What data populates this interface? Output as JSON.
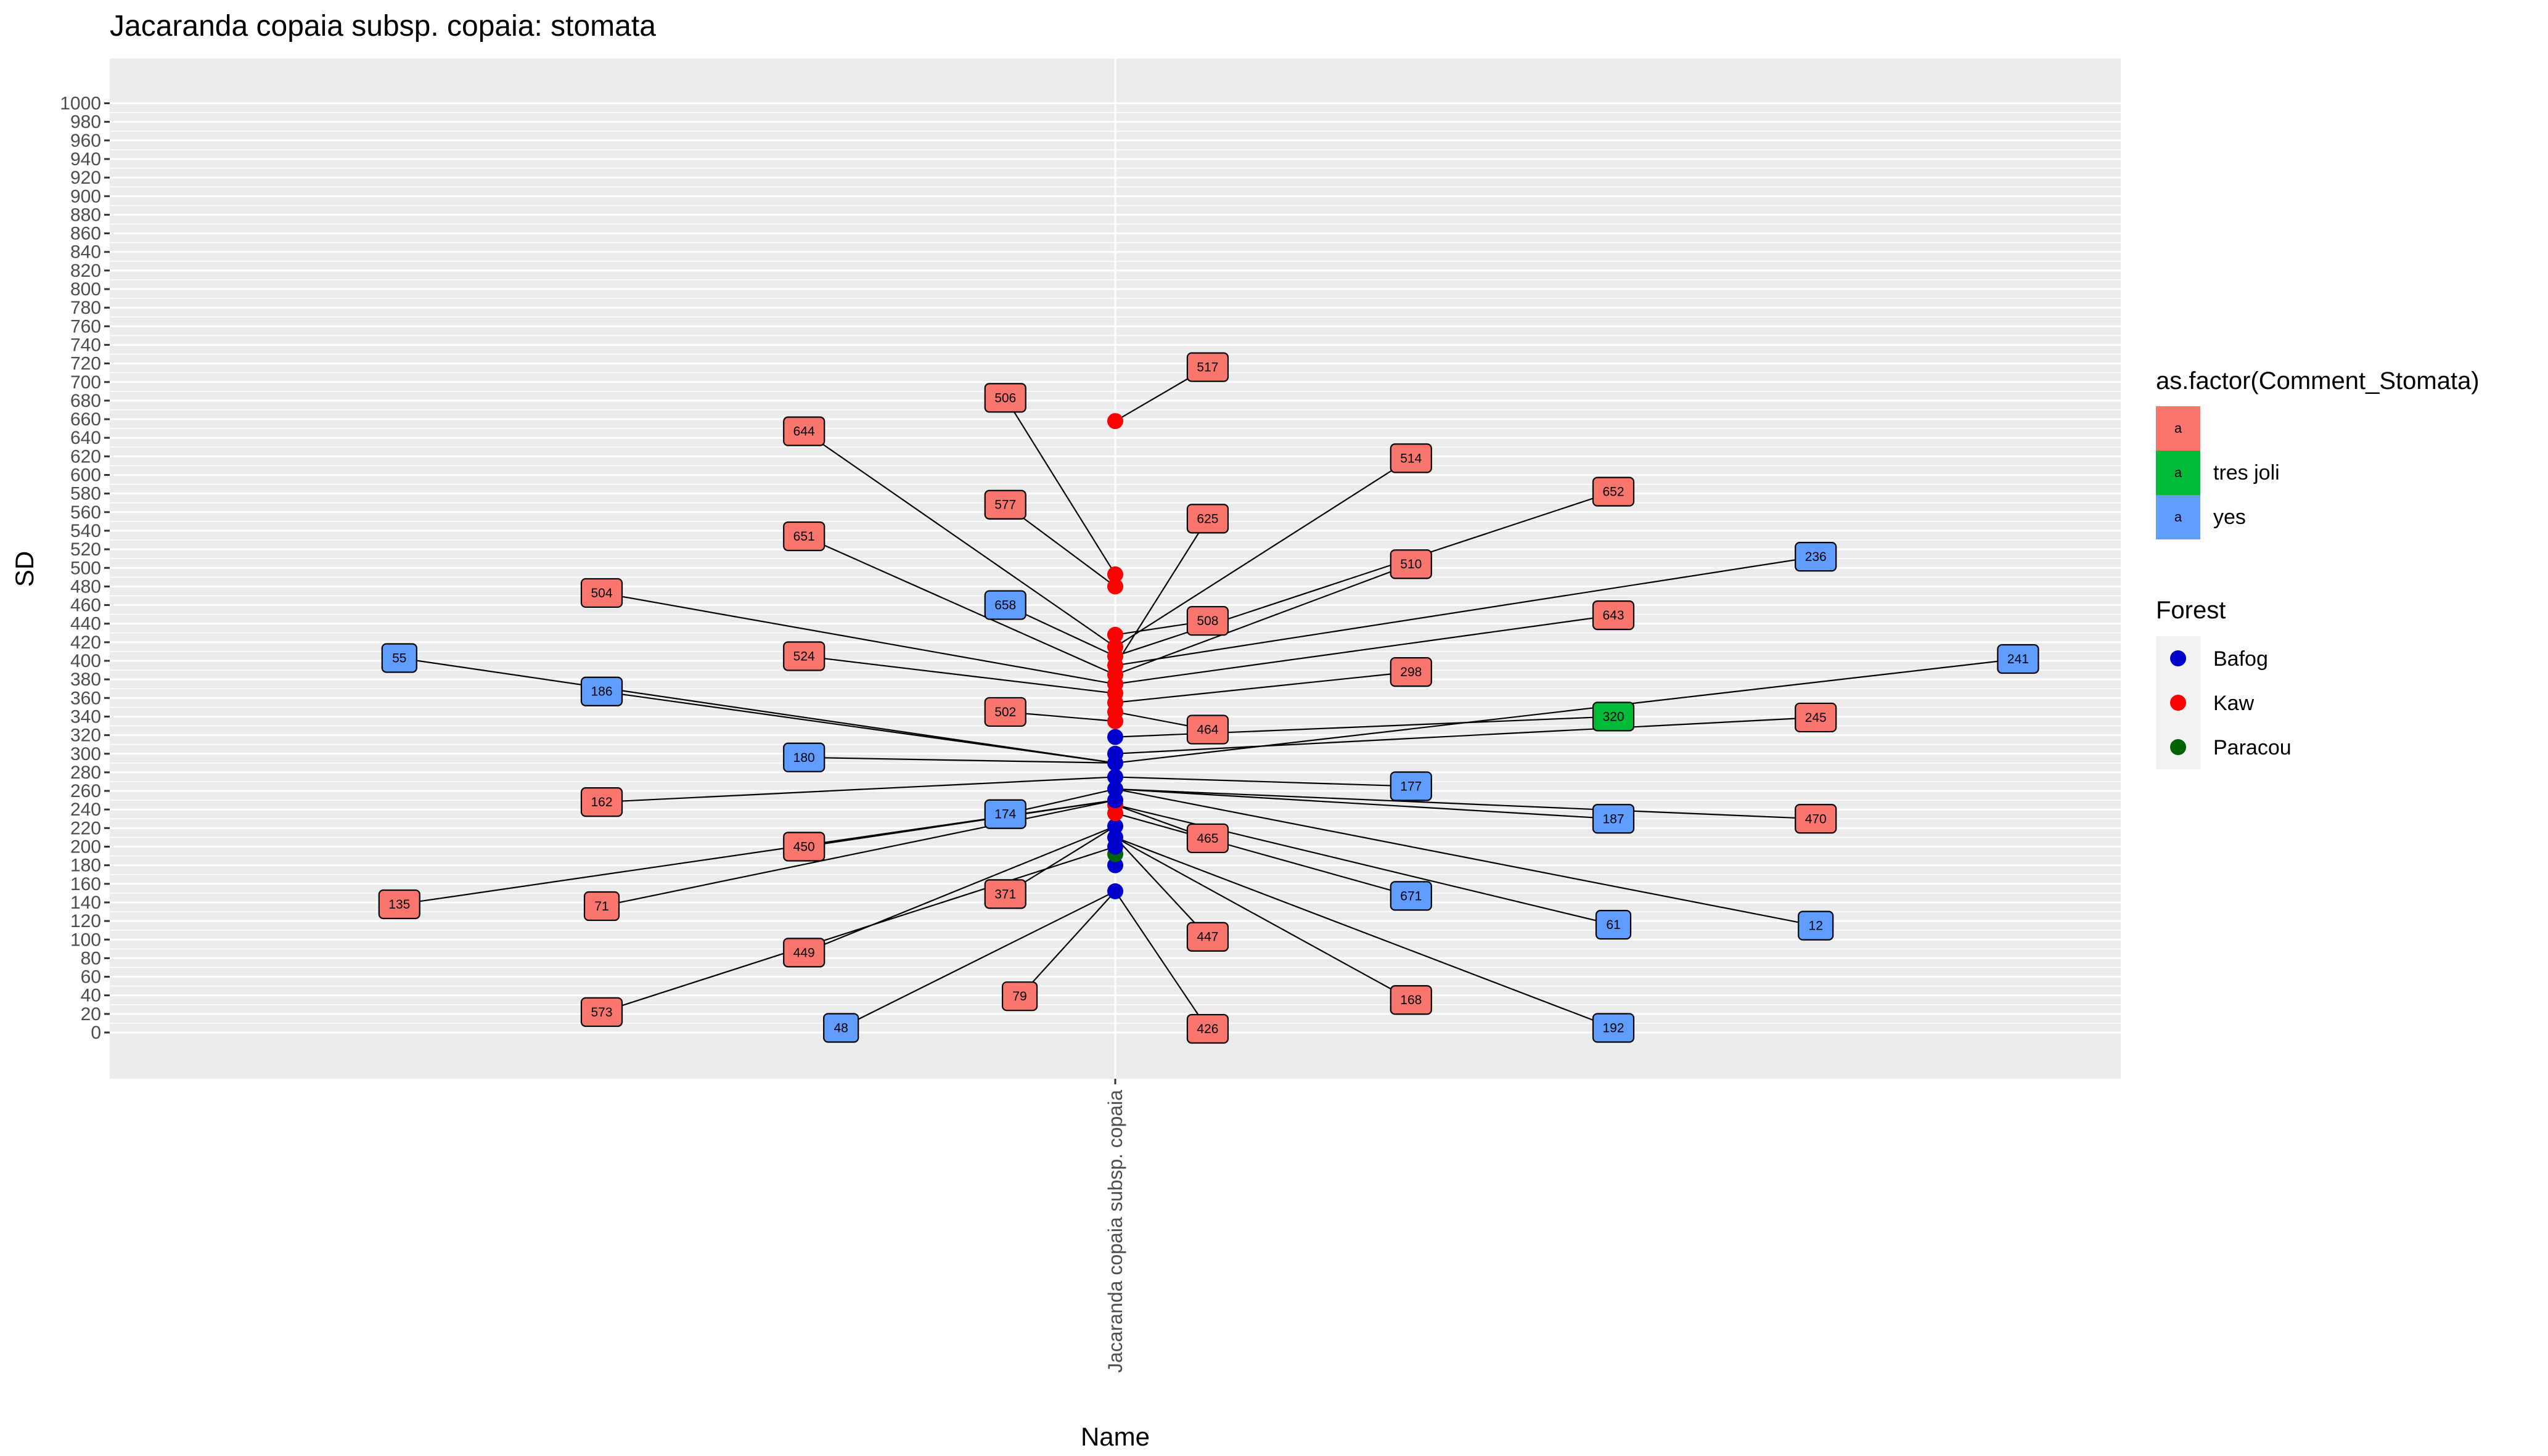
{
  "colors": {
    "panel_bg": "#EBEBEB",
    "grid": "#FFFFFF",
    "fill_blank": "#F8766D",
    "fill_tres_joli": "#00BA38",
    "fill_yes": "#619CFF",
    "Bafog": "#0000CD",
    "Kaw": "#FF0000",
    "Paracou": "#006400"
  },
  "chart_data": {
    "type": "scatter",
    "title": "Jacaranda copaia subsp. copaia: stomata",
    "xlabel": "Name",
    "ylabel": "SD",
    "categories": [
      "Jacaranda copaia subsp. copaia"
    ],
    "ylim": [
      -25,
      1025
    ],
    "yticks": [
      0,
      20,
      40,
      60,
      80,
      100,
      120,
      140,
      160,
      180,
      200,
      220,
      240,
      260,
      280,
      300,
      320,
      340,
      360,
      380,
      400,
      420,
      440,
      460,
      480,
      500,
      520,
      540,
      560,
      580,
      600,
      620,
      640,
      660,
      680,
      700,
      720,
      740,
      760,
      780,
      800,
      820,
      840,
      860,
      880,
      900,
      920,
      940,
      960,
      980,
      1000
    ],
    "grid": true,
    "legend_position": "right",
    "legend_fill": {
      "title": "as.factor(Comment_Stomata)",
      "key_glyph": "a",
      "entries": [
        {
          "label": "",
          "color": "#F8766D"
        },
        {
          "label": "tres joli",
          "color": "#00BA38"
        },
        {
          "label": "yes",
          "color": "#619CFF"
        }
      ]
    },
    "legend_color": {
      "title": "Forest",
      "entries": [
        {
          "label": "Bafog",
          "color": "#0000CD"
        },
        {
          "label": "Kaw",
          "color": "#FF0000"
        },
        {
          "label": "Paracou",
          "color": "#006400"
        }
      ]
    },
    "points": [
      {
        "y": 152,
        "forest": "Bafog"
      },
      {
        "y": 180,
        "forest": "Bafog"
      },
      {
        "y": 192,
        "forest": "Paracou"
      },
      {
        "y": 200,
        "forest": "Bafog"
      },
      {
        "y": 210,
        "forest": "Bafog"
      },
      {
        "y": 222,
        "forest": "Bafog"
      },
      {
        "y": 236,
        "forest": "Kaw"
      },
      {
        "y": 245,
        "forest": "Kaw"
      },
      {
        "y": 250,
        "forest": "Bafog"
      },
      {
        "y": 262,
        "forest": "Bafog"
      },
      {
        "y": 275,
        "forest": "Bafog"
      },
      {
        "y": 290,
        "forest": "Bafog"
      },
      {
        "y": 300,
        "forest": "Bafog"
      },
      {
        "y": 318,
        "forest": "Bafog"
      },
      {
        "y": 335,
        "forest": "Kaw"
      },
      {
        "y": 345,
        "forest": "Kaw"
      },
      {
        "y": 355,
        "forest": "Kaw"
      },
      {
        "y": 365,
        "forest": "Kaw"
      },
      {
        "y": 375,
        "forest": "Kaw"
      },
      {
        "y": 385,
        "forest": "Kaw"
      },
      {
        "y": 395,
        "forest": "Kaw"
      },
      {
        "y": 405,
        "forest": "Kaw"
      },
      {
        "y": 415,
        "forest": "Kaw"
      },
      {
        "y": 428,
        "forest": "Kaw"
      },
      {
        "y": 480,
        "forest": "Kaw"
      },
      {
        "y": 493,
        "forest": "Kaw"
      },
      {
        "y": 658,
        "forest": "Kaw"
      }
    ],
    "labels": [
      {
        "text": "517",
        "comment": "",
        "lx": 0.09,
        "ly": 716,
        "py": 658
      },
      {
        "text": "506",
        "comment": "",
        "lx": -0.107,
        "ly": 683,
        "py": 493
      },
      {
        "text": "644",
        "comment": "",
        "lx": -0.303,
        "ly": 647,
        "py": 415
      },
      {
        "text": "514",
        "comment": "",
        "lx": 0.288,
        "ly": 618,
        "py": 415
      },
      {
        "text": "652",
        "comment": "",
        "lx": 0.485,
        "ly": 582,
        "py": 405
      },
      {
        "text": "577",
        "comment": "",
        "lx": -0.107,
        "ly": 568,
        "py": 480
      },
      {
        "text": "625",
        "comment": "",
        "lx": 0.09,
        "ly": 553,
        "py": 395
      },
      {
        "text": "651",
        "comment": "",
        "lx": -0.303,
        "ly": 534,
        "py": 385
      },
      {
        "text": "236",
        "comment": "yes",
        "lx": 0.682,
        "ly": 512,
        "py": 395
      },
      {
        "text": "510",
        "comment": "",
        "lx": 0.288,
        "ly": 504,
        "py": 385
      },
      {
        "text": "504",
        "comment": "",
        "lx": -0.5,
        "ly": 473,
        "py": 375
      },
      {
        "text": "658",
        "comment": "yes",
        "lx": -0.107,
        "ly": 460,
        "py": 405
      },
      {
        "text": "643",
        "comment": "",
        "lx": 0.485,
        "ly": 449,
        "py": 375
      },
      {
        "text": "508",
        "comment": "",
        "lx": 0.09,
        "ly": 443,
        "py": 428
      },
      {
        "text": "55",
        "comment": "yes",
        "lx": -0.697,
        "ly": 403,
        "py": 290
      },
      {
        "text": "241",
        "comment": "yes",
        "lx": 0.879,
        "ly": 402,
        "py": 290
      },
      {
        "text": "524",
        "comment": "",
        "lx": -0.303,
        "ly": 405,
        "py": 365
      },
      {
        "text": "298",
        "comment": "",
        "lx": 0.288,
        "ly": 388,
        "py": 355
      },
      {
        "text": "186",
        "comment": "yes",
        "lx": -0.5,
        "ly": 367,
        "py": 290
      },
      {
        "text": "502",
        "comment": "",
        "lx": -0.107,
        "ly": 345,
        "py": 335
      },
      {
        "text": "320",
        "comment": "tres joli",
        "lx": 0.485,
        "ly": 340,
        "py": 318
      },
      {
        "text": "245",
        "comment": "",
        "lx": 0.682,
        "ly": 339,
        "py": 300
      },
      {
        "text": "464",
        "comment": "",
        "lx": 0.09,
        "ly": 326,
        "py": 345
      },
      {
        "text": "180",
        "comment": "yes",
        "lx": -0.303,
        "ly": 296,
        "py": 290
      },
      {
        "text": "177",
        "comment": "yes",
        "lx": 0.288,
        "ly": 265,
        "py": 275
      },
      {
        "text": "162",
        "comment": "",
        "lx": -0.5,
        "ly": 248,
        "py": 275
      },
      {
        "text": "174",
        "comment": "yes",
        "lx": -0.107,
        "ly": 235,
        "py": 262
      },
      {
        "text": "187",
        "comment": "yes",
        "lx": 0.485,
        "ly": 230,
        "py": 262
      },
      {
        "text": "470",
        "comment": "",
        "lx": 0.682,
        "ly": 230,
        "py": 262
      },
      {
        "text": "465",
        "comment": "",
        "lx": 0.09,
        "ly": 209,
        "py": 245
      },
      {
        "text": "450",
        "comment": "",
        "lx": -0.303,
        "ly": 200,
        "py": 250
      },
      {
        "text": "135",
        "comment": "",
        "lx": -0.697,
        "ly": 138,
        "py": 250
      },
      {
        "text": "71",
        "comment": "",
        "lx": -0.5,
        "ly": 136,
        "py": 250
      },
      {
        "text": "371",
        "comment": "",
        "lx": -0.107,
        "ly": 149,
        "py": 222
      },
      {
        "text": "671",
        "comment": "yes",
        "lx": 0.288,
        "ly": 147,
        "py": 236
      },
      {
        "text": "61",
        "comment": "yes",
        "lx": 0.485,
        "ly": 116,
        "py": 245
      },
      {
        "text": "12",
        "comment": "yes",
        "lx": 0.682,
        "ly": 115,
        "py": 262
      },
      {
        "text": "447",
        "comment": "",
        "lx": 0.09,
        "ly": 103,
        "py": 210
      },
      {
        "text": "449",
        "comment": "",
        "lx": -0.303,
        "ly": 86,
        "py": 222
      },
      {
        "text": "79",
        "comment": "",
        "lx": -0.093,
        "ly": 39,
        "py": 152
      },
      {
        "text": "168",
        "comment": "",
        "lx": 0.288,
        "ly": 35,
        "py": 210
      },
      {
        "text": "573",
        "comment": "",
        "lx": -0.5,
        "ly": 22,
        "py": 200
      },
      {
        "text": "48",
        "comment": "yes",
        "lx": -0.267,
        "ly": 5,
        "py": 152
      },
      {
        "text": "426",
        "comment": "",
        "lx": 0.09,
        "ly": 4,
        "py": 152
      },
      {
        "text": "192",
        "comment": "yes",
        "lx": 0.485,
        "ly": 5,
        "py": 210
      }
    ]
  }
}
